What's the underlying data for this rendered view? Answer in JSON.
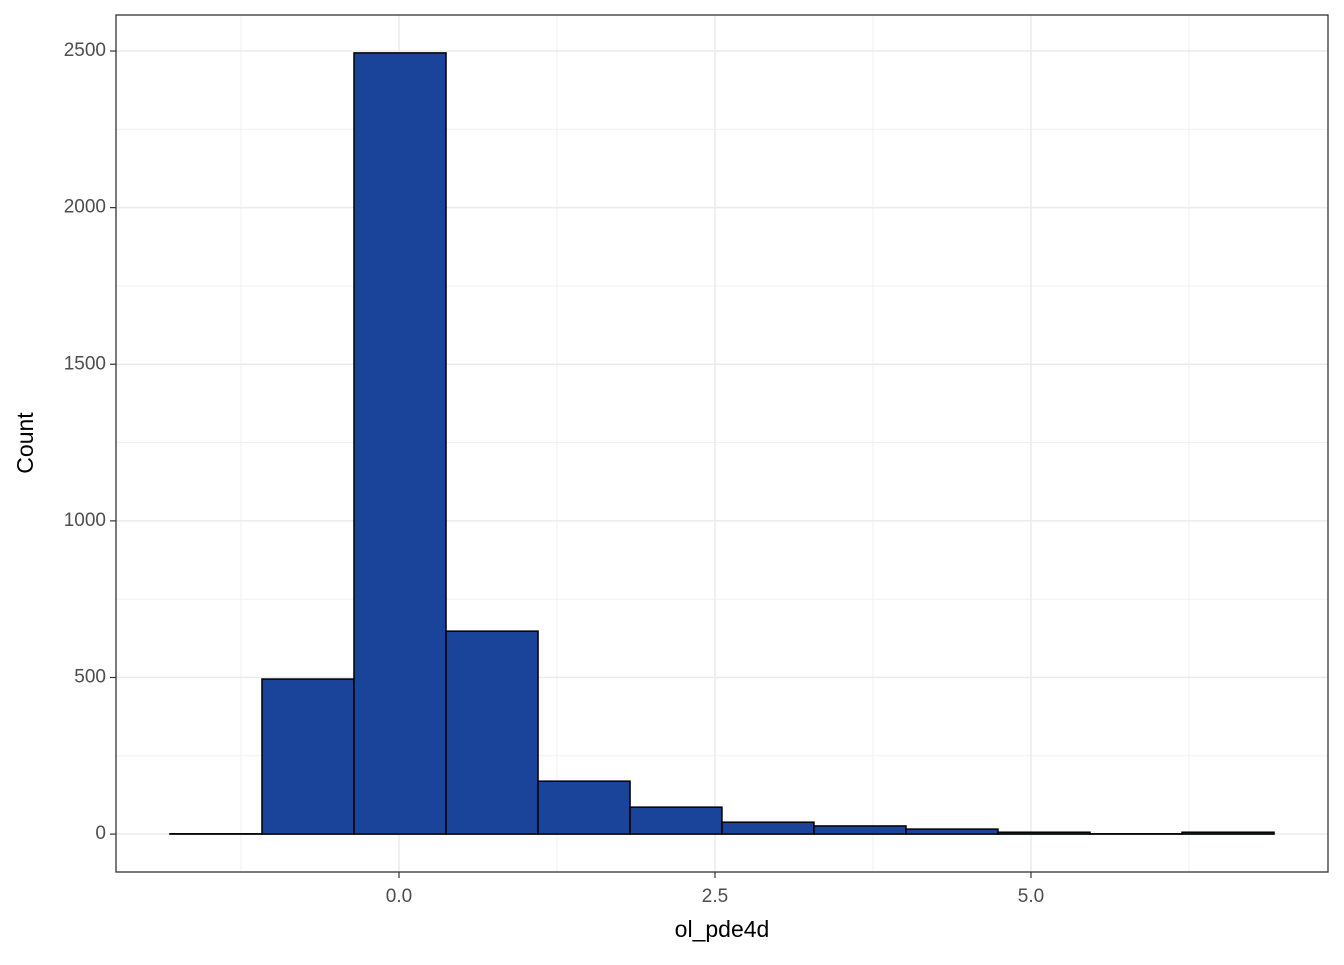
{
  "chart_data": {
    "type": "histogram",
    "x_label": "ol_pde4d",
    "y_label": "Count",
    "bins": [
      -1.812,
      -1.084,
      -0.356,
      0.372,
      1.1,
      1.828,
      2.555,
      3.283,
      4.011,
      4.739,
      5.467,
      6.195,
      6.923
    ],
    "values": [
      1,
      495,
      2494,
      648,
      169,
      86,
      38,
      26,
      16,
      6,
      1,
      6
    ],
    "color": "#1a4499",
    "xlim": [
      -2.239,
      7.35
    ],
    "ylim": [
      -121,
      2615
    ],
    "xticks": [
      {
        "value": 0,
        "label": "0.0"
      },
      {
        "value": 2.5,
        "label": "2.5"
      },
      {
        "value": 5,
        "label": "5.0"
      }
    ],
    "yticks": [
      0,
      500,
      1000,
      1500,
      2000,
      2500
    ],
    "xminor": [
      -1.25,
      1.25,
      3.75,
      6.25
    ],
    "yminor": [
      250,
      750,
      1250,
      1750,
      2250
    ],
    "grid": true
  }
}
